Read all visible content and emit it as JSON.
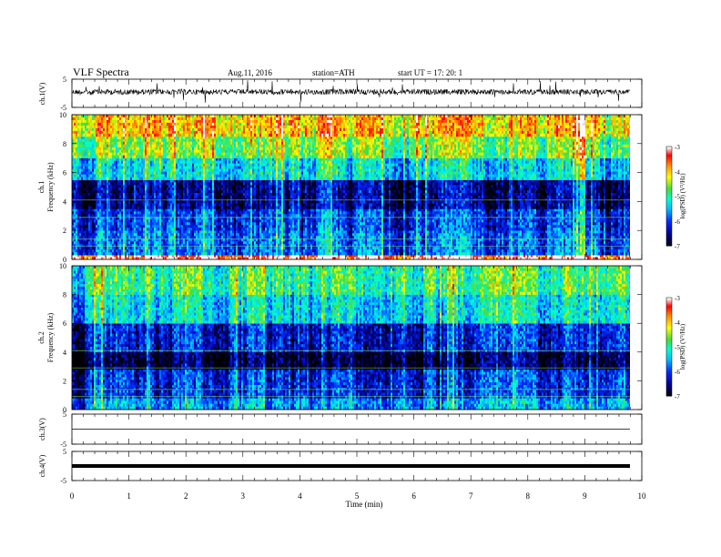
{
  "header": {
    "title": "VLF  Spectra",
    "date": "Aug.11, 2016",
    "station": "station=ATH",
    "start": "start  UT  =    17: 20: 1"
  },
  "chart_data": [
    {
      "type": "line",
      "name": "ch1-waveform",
      "ylabel": "ch.1(V)",
      "ylim": [
        -5,
        5
      ],
      "yticks": [
        "5",
        "-5"
      ],
      "xlim": [
        0,
        10
      ],
      "description_values": {
        "baseline_v": 0,
        "typical_noise_v": 0.8,
        "spike_v": 2.5
      }
    },
    {
      "type": "heatmap",
      "name": "ch1-spectrogram",
      "ylabel": "ch.1\nFrequency  (kHz)",
      "ylim": [
        0,
        10
      ],
      "yticks": [
        "0",
        "2",
        "4",
        "6",
        "8",
        "10"
      ],
      "xlim": [
        0,
        9.8
      ],
      "colorbar": {
        "label": "log(PSD) (V²/Hz)",
        "min": -7,
        "max": -3,
        "ticks": [
          "-3",
          "-4",
          "-5",
          "-6",
          "-7"
        ]
      },
      "bands_khz": [
        {
          "from": 0,
          "to": 0.3,
          "log_psd": -3.2
        },
        {
          "from": 0.3,
          "to": 2.0,
          "log_psd": -5.8
        },
        {
          "from": 2.0,
          "to": 3.5,
          "log_psd": -6.0
        },
        {
          "from": 3.5,
          "to": 5.5,
          "log_psd": -6.5
        },
        {
          "from": 5.5,
          "to": 7.0,
          "log_psd": -5.3
        },
        {
          "from": 7.0,
          "to": 8.5,
          "log_psd": -4.6
        },
        {
          "from": 8.5,
          "to": 10,
          "log_psd": -4.0
        }
      ]
    },
    {
      "type": "heatmap",
      "name": "ch2-spectrogram",
      "ylabel": "ch.2\nFrequency  (kHz)",
      "ylim": [
        0,
        10
      ],
      "yticks": [
        "0",
        "2",
        "4",
        "6",
        "8",
        "10"
      ],
      "xlim": [
        0,
        9.8
      ],
      "colorbar": {
        "label": "log(PSD) (V²/Hz)",
        "min": -7,
        "max": -3,
        "ticks": [
          "-3",
          "-4",
          "-5",
          "-6",
          "-7"
        ]
      },
      "bands_khz": [
        {
          "from": 0,
          "to": 0.8,
          "log_psd": -5.6
        },
        {
          "from": 0.8,
          "to": 2.8,
          "log_psd": -6.1
        },
        {
          "from": 2.8,
          "to": 4.0,
          "log_psd": -6.8
        },
        {
          "from": 4.0,
          "to": 6.0,
          "log_psd": -6.2
        },
        {
          "from": 6.0,
          "to": 8.0,
          "log_psd": -5.3
        },
        {
          "from": 8.0,
          "to": 10,
          "log_psd": -4.9
        }
      ]
    },
    {
      "type": "line",
      "name": "ch3-waveform",
      "ylabel": "ch.3(V)",
      "ylim": [
        -5,
        5
      ],
      "yticks": [
        "5",
        "-5"
      ],
      "xlim": [
        0,
        9.8
      ],
      "values_v": {
        "level": 0
      }
    },
    {
      "type": "line",
      "name": "ch4-waveform",
      "ylabel": "ch.4(V)",
      "ylim": [
        -5,
        5
      ],
      "yticks": [
        "5",
        "-5"
      ],
      "xlim": [
        0,
        9.8
      ],
      "values_v": {
        "level": 0
      }
    }
  ],
  "x_axis": {
    "label": "Time  (min)",
    "range": [
      0,
      10
    ],
    "ticks": [
      "0",
      "1",
      "2",
      "3",
      "4",
      "5",
      "6",
      "7",
      "8",
      "9",
      "10"
    ]
  },
  "colors": {
    "scale": [
      "#000000",
      "#00008b",
      "#0000ff",
      "#00bfff",
      "#00ffc8",
      "#3cdc3c",
      "#ffff00",
      "#ff8c00",
      "#ff0000",
      "#ffffff"
    ]
  }
}
